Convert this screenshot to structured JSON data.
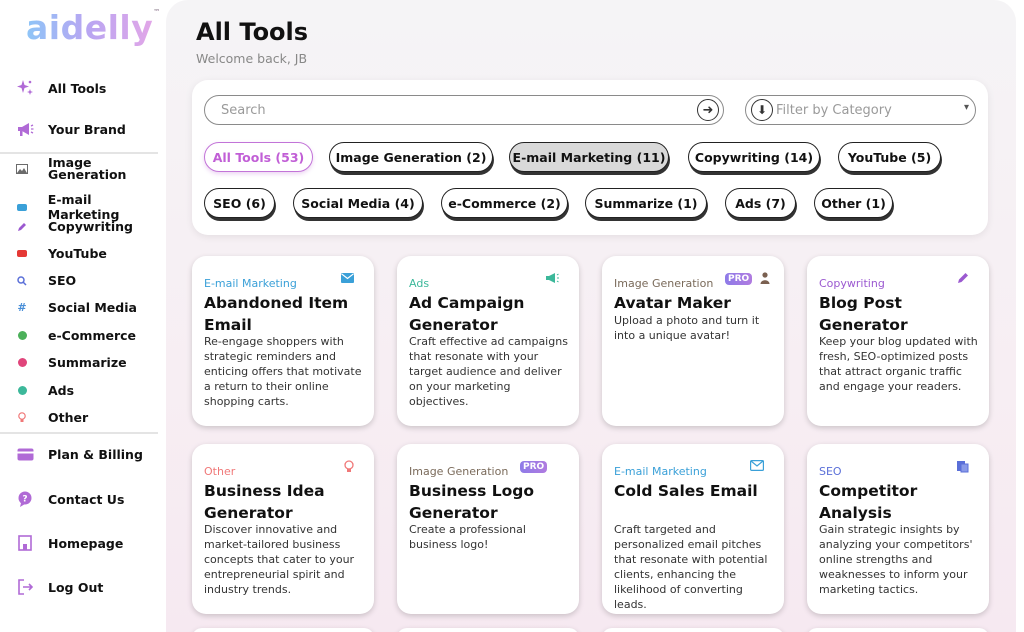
{
  "brand": {
    "name": "aidelly",
    "tm": "™"
  },
  "sidebar": {
    "top_items": [
      {
        "label": "All Tools",
        "icon": "sparkle-icon"
      },
      {
        "label": "Your Brand",
        "icon": "megaphone-icon"
      }
    ],
    "categories": [
      {
        "label": "Image Generation",
        "icon": "image-icon",
        "color": "#6b6b6b"
      },
      {
        "label": "E-mail Marketing",
        "icon": "mail-icon",
        "color": "#3aa0d8"
      },
      {
        "label": "Copywriting",
        "icon": "pen-icon",
        "color": "#9b59d0"
      },
      {
        "label": "YouTube",
        "icon": "youtube-icon",
        "color": "#e53935"
      },
      {
        "label": "SEO",
        "icon": "seo-icon",
        "color": "#5a6fd8"
      },
      {
        "label": "Social Media",
        "icon": "hashtag-icon",
        "color": "#4a8fd8"
      },
      {
        "label": "e-Commerce",
        "icon": "globe-icon",
        "color": "#4cb05a"
      },
      {
        "label": "Summarize",
        "icon": "summarize-icon",
        "color": "#e0457b"
      },
      {
        "label": "Ads",
        "icon": "ads-icon",
        "color": "#3cb89a"
      },
      {
        "label": "Other",
        "icon": "bulb-icon",
        "color": "#f07878"
      }
    ],
    "bottom_items": [
      {
        "label": "Plan & Billing",
        "icon": "card-icon"
      },
      {
        "label": "Contact Us",
        "icon": "help-icon"
      },
      {
        "label": "Homepage",
        "icon": "home-icon"
      },
      {
        "label": "Log Out",
        "icon": "logout-icon"
      }
    ]
  },
  "header": {
    "title": "All Tools",
    "subtitle": "Welcome back, JB"
  },
  "search": {
    "placeholder": "Search"
  },
  "category_filter": {
    "placeholder": "Filter by Category"
  },
  "chips": [
    {
      "label": "All Tools (53)",
      "state": "active"
    },
    {
      "label": "Image Generation (2)",
      "state": "default"
    },
    {
      "label": "E-mail Marketing (11)",
      "state": "selected"
    },
    {
      "label": "Copywriting (14)",
      "state": "default"
    },
    {
      "label": "YouTube (5)",
      "state": "default"
    },
    {
      "label": "SEO (6)",
      "state": "default"
    },
    {
      "label": "Social Media (4)",
      "state": "default"
    },
    {
      "label": "e-Commerce (2)",
      "state": "default"
    },
    {
      "label": "Summarize (1)",
      "state": "default"
    },
    {
      "label": "Ads (7)",
      "state": "default"
    },
    {
      "label": "Other (1)",
      "state": "default"
    }
  ],
  "cards": [
    {
      "category": "E-mail Marketing",
      "cat_color": "#3aa0d8",
      "icon": "mail-icon",
      "pro": false,
      "title": "Abandoned Item Email",
      "description": "Re-engage shoppers with strategic reminders and enticing offers that motivate a return to their online shopping carts."
    },
    {
      "category": "Ads",
      "cat_color": "#3cb89a",
      "icon": "megaphone-icon",
      "pro": false,
      "title": "Ad Campaign Generator",
      "description": "Craft effective ad campaigns that resonate with your target audience and deliver on your marketing objectives."
    },
    {
      "category": "Image Generation",
      "cat_color": "#7a6a5a",
      "icon": "person-icon",
      "pro": true,
      "pro_label": "PRO",
      "title": "Avatar Maker",
      "description": "Upload a photo and turn it into a unique avatar!"
    },
    {
      "category": "Copywriting",
      "cat_color": "#9b59d0",
      "icon": "pen-icon",
      "pro": false,
      "title": "Blog Post Generator",
      "description": "Keep your blog updated with fresh, SEO-optimized posts that attract organic traffic and engage your readers."
    },
    {
      "category": "Other",
      "cat_color": "#f07878",
      "icon": "bulb-icon",
      "pro": false,
      "title": "Business Idea Generator",
      "description": "Discover innovative and market-tailored business concepts that cater to your entrepreneurial spirit and industry trends."
    },
    {
      "category": "Image Generation",
      "cat_color": "#7a6a5a",
      "icon": "",
      "pro": true,
      "pro_label": "PRO",
      "title": "Business Logo Generator",
      "description": "Create a professional business logo!"
    },
    {
      "category": "E-mail Marketing",
      "cat_color": "#3aa0d8",
      "icon": "mail-icon",
      "pro": false,
      "title": "Cold Sales Email",
      "description": "Craft targeted and personalized email pitches that resonate with potential clients, enhancing the likelihood of converting leads."
    },
    {
      "category": "SEO",
      "cat_color": "#5a6fd8",
      "icon": "seo-icon",
      "pro": false,
      "title": "Competitor Analysis",
      "description": "Gain strategic insights by analyzing your competitors' online strengths and weaknesses to inform your marketing tactics."
    }
  ]
}
